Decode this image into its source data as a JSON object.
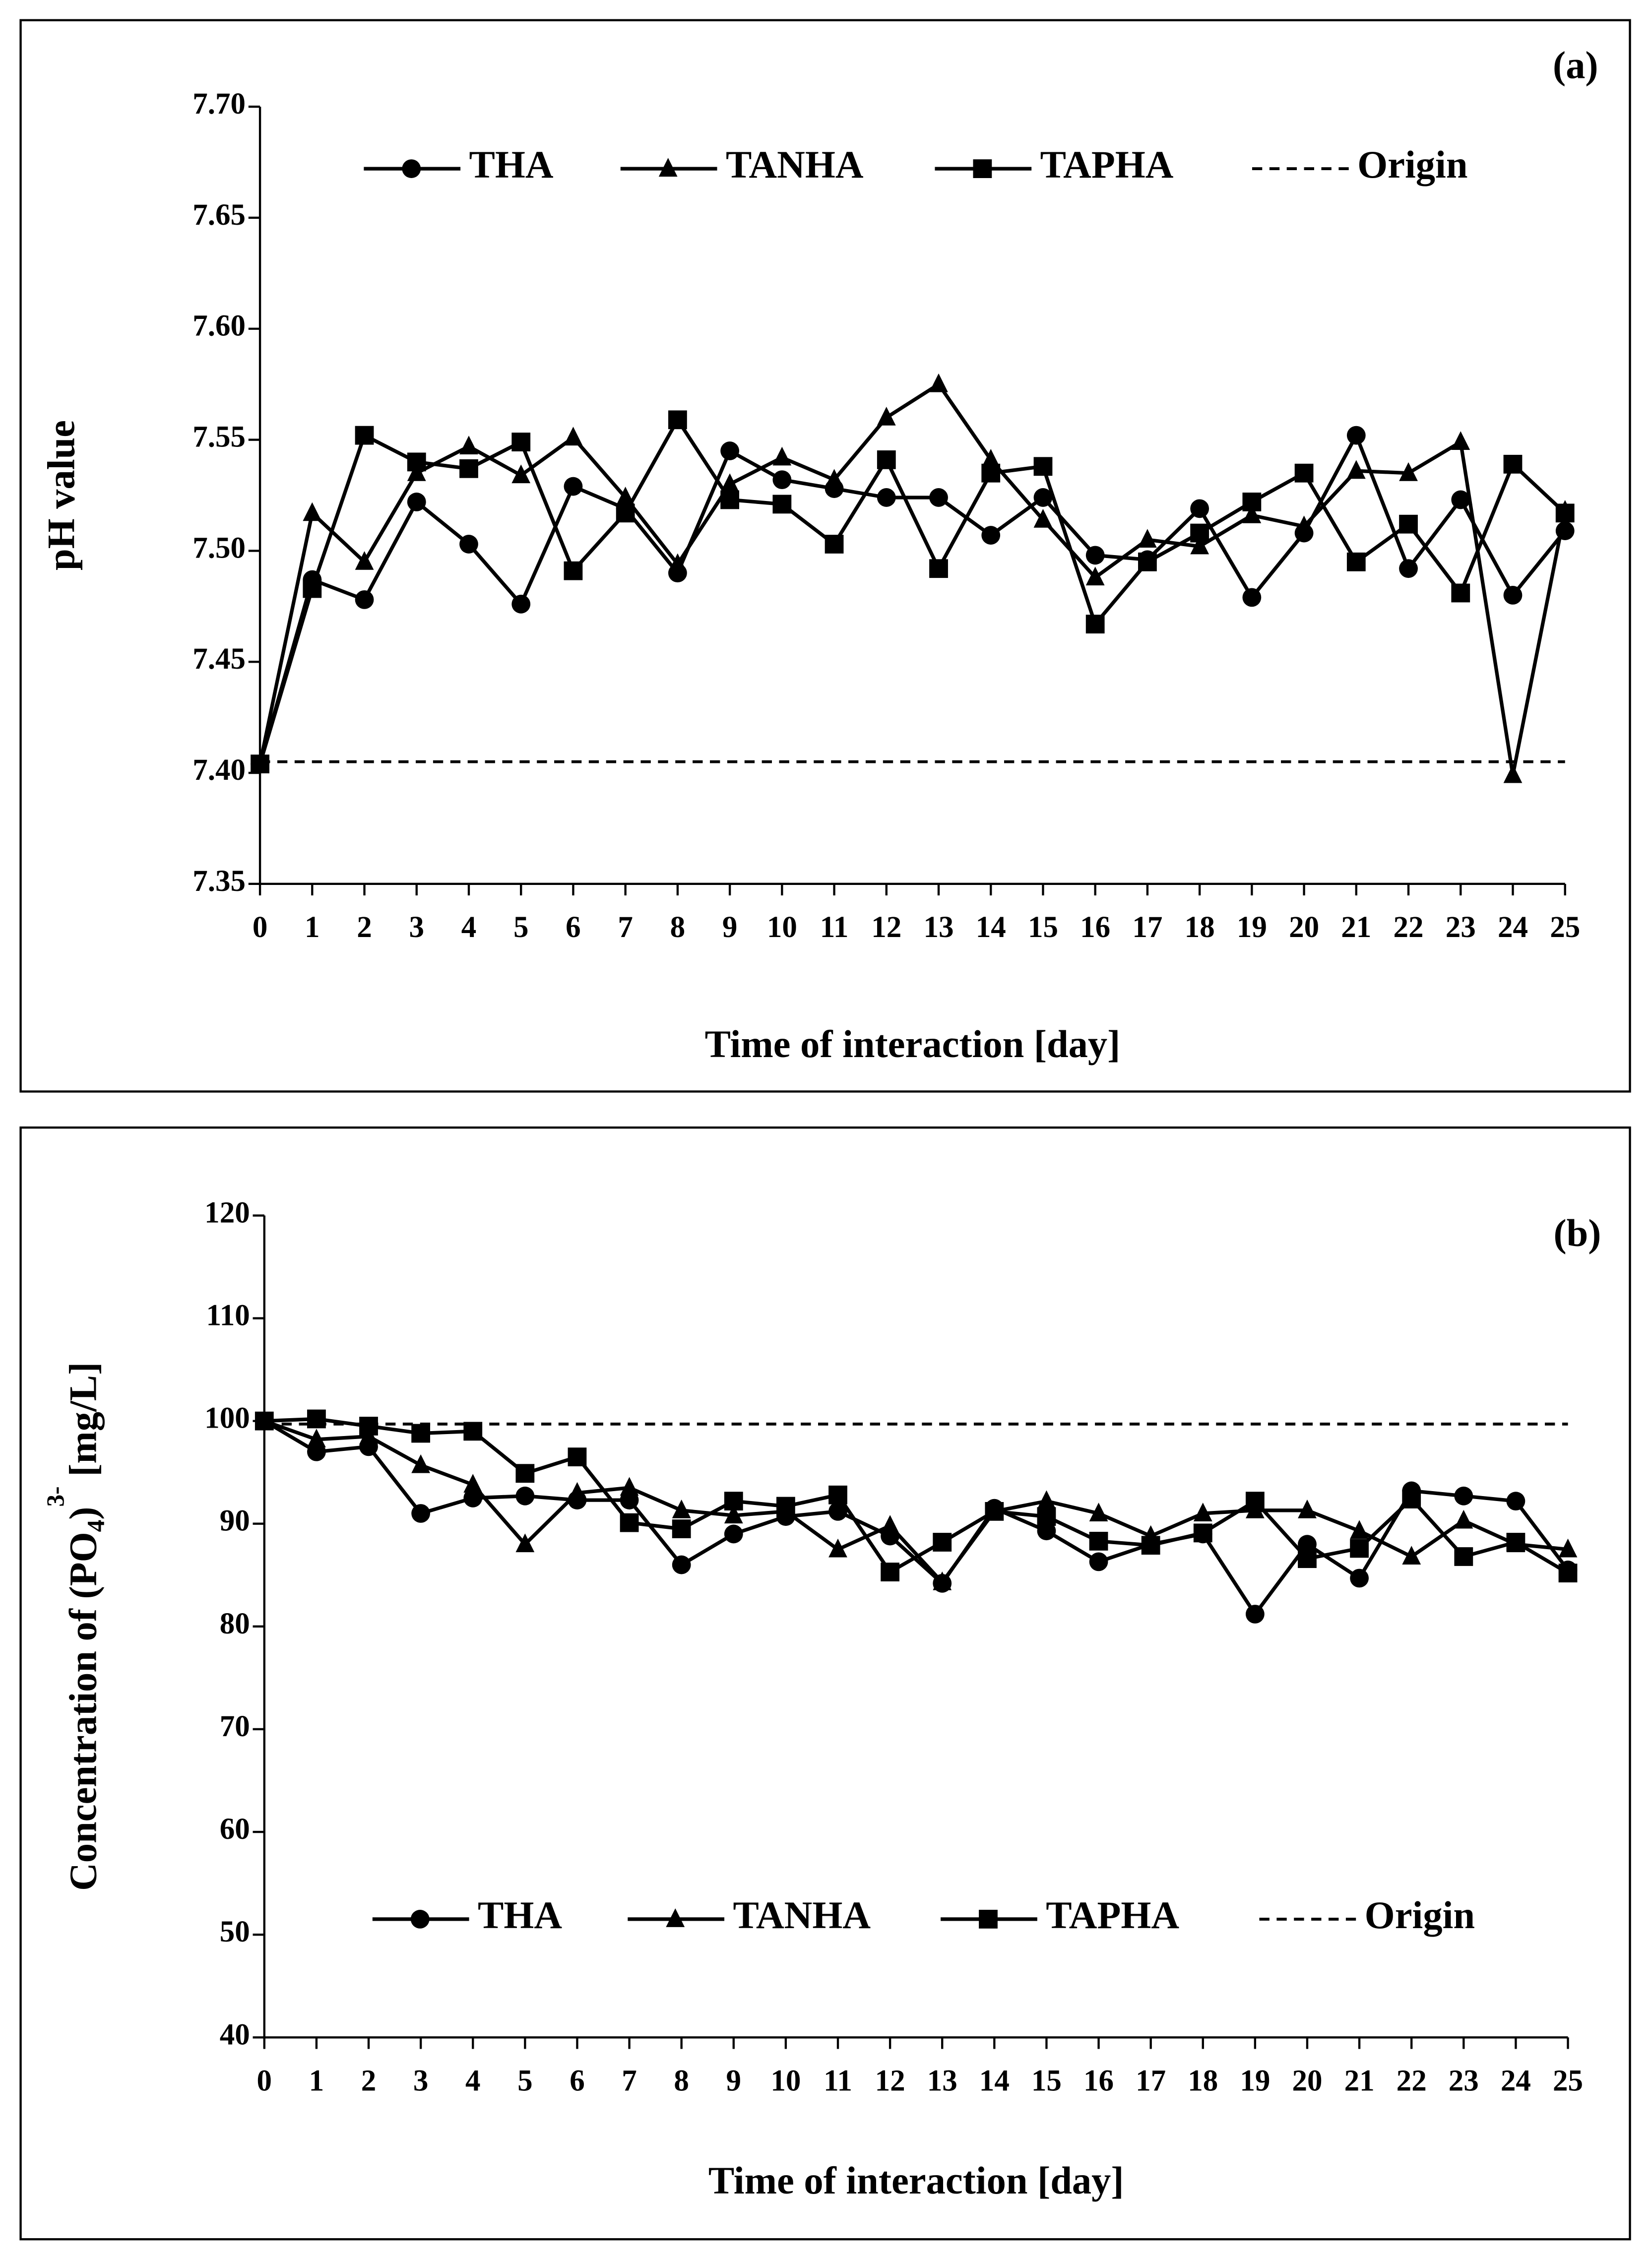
{
  "chart_data": [
    {
      "type": "line",
      "panel_label": "(a)",
      "xlabel": "Time of interaction [day]",
      "ylabel": [
        "pH value"
      ],
      "x": [
        0,
        1,
        2,
        3,
        4,
        5,
        6,
        7,
        8,
        9,
        10,
        11,
        12,
        13,
        14,
        15,
        16,
        17,
        18,
        19,
        20,
        21,
        22,
        23,
        24,
        25
      ],
      "xlim": [
        0,
        25
      ],
      "xticks": [
        0,
        1,
        2,
        3,
        4,
        5,
        6,
        7,
        8,
        9,
        10,
        11,
        12,
        13,
        14,
        15,
        16,
        17,
        18,
        19,
        20,
        21,
        22,
        23,
        24,
        25
      ],
      "ylim": [
        7.35,
        7.7
      ],
      "yticks": [
        7.35,
        {
          "value": 7.4,
          "label": "7.40"
        },
        7.45,
        {
          "value": 7.5,
          "label": "7.50"
        },
        7.55,
        {
          "value": 7.6,
          "label": "7.60"
        },
        7.65,
        {
          "value": 7.7,
          "label": "7.70"
        }
      ],
      "legend": "upper center",
      "series": [
        {
          "name": "THA",
          "color": "#000000",
          "marker": "circle",
          "values": [
            7.404,
            7.487,
            7.478,
            7.522,
            7.503,
            7.476,
            7.529,
            7.519,
            7.49,
            7.545,
            7.532,
            7.528,
            7.524,
            7.524,
            7.507,
            7.524,
            7.498,
            7.496,
            7.519,
            7.479,
            7.508,
            7.552,
            7.492,
            7.523,
            7.48,
            7.509
          ]
        },
        {
          "name": "TANHA",
          "color": "#000000",
          "marker": "triangle",
          "values": [
            7.404,
            7.517,
            7.495,
            7.535,
            7.547,
            7.534,
            7.551,
            7.524,
            7.494,
            7.53,
            7.542,
            7.532,
            7.56,
            7.575,
            7.541,
            7.514,
            7.488,
            7.505,
            7.502,
            7.516,
            7.511,
            7.536,
            7.535,
            7.549,
            7.399,
            7.518
          ]
        },
        {
          "name": "TAPHA",
          "color": "#000000",
          "marker": "square",
          "values": [
            7.404,
            7.483,
            7.552,
            7.54,
            7.537,
            7.549,
            7.491,
            7.517,
            7.559,
            7.523,
            7.521,
            7.503,
            7.541,
            7.492,
            7.535,
            7.538,
            7.467,
            7.495,
            7.508,
            7.522,
            7.535,
            7.495,
            7.512,
            7.481,
            7.539,
            7.517
          ]
        },
        {
          "name": "Origin",
          "color": "#000000",
          "dashed": true,
          "values": [
            7.405,
            7.405,
            7.405,
            7.405,
            7.405,
            7.405,
            7.405,
            7.405,
            7.405,
            7.405,
            7.405,
            7.405,
            7.405,
            7.405,
            7.405,
            7.405,
            7.405,
            7.405,
            7.405,
            7.405,
            7.405,
            7.405,
            7.405,
            7.405,
            7.405,
            7.405
          ]
        }
      ]
    },
    {
      "type": "line",
      "panel_label": "(b)",
      "xlabel": "Time of interaction [day]",
      "ylabel": [
        "Concentration of (PO",
        "4",
        ")",
        "3-",
        " [mg/L]"
      ],
      "x": [
        0,
        1,
        2,
        3,
        4,
        5,
        6,
        7,
        8,
        9,
        10,
        11,
        12,
        13,
        14,
        15,
        16,
        17,
        18,
        19,
        20,
        21,
        22,
        23,
        24,
        25
      ],
      "xlim": [
        0,
        25
      ],
      "xticks": [
        0,
        1,
        2,
        3,
        4,
        5,
        6,
        7,
        8,
        9,
        10,
        11,
        12,
        13,
        14,
        15,
        16,
        17,
        18,
        19,
        20,
        21,
        22,
        23,
        24,
        25
      ],
      "ylim": [
        40,
        120
      ],
      "yticks": [
        40,
        50,
        60,
        70,
        80,
        90,
        100,
        110,
        120
      ],
      "legend": "lower center",
      "series": [
        {
          "name": "THA",
          "color": "#000000",
          "marker": "circle",
          "values": [
            100,
            97,
            97.5,
            91,
            92.5,
            92.7,
            92.3,
            92.3,
            86,
            89,
            90.7,
            91.2,
            88.8,
            84.2,
            91.5,
            89.3,
            86.3,
            88,
            89,
            81.2,
            88,
            84.7,
            93.2,
            92.7,
            92.2,
            85.5
          ]
        },
        {
          "name": "TANHA",
          "color": "#000000",
          "marker": "triangle",
          "values": [
            100,
            98.2,
            98.5,
            95.7,
            93.8,
            88,
            93,
            93.5,
            91.3,
            90.8,
            91.2,
            87.5,
            89.8,
            84.3,
            91.2,
            92.2,
            91,
            88.8,
            91,
            91.3,
            91.3,
            89.3,
            86.8,
            90.3,
            88,
            87.5
          ]
        },
        {
          "name": "TAPHA",
          "color": "#000000",
          "marker": "square",
          "values": [
            100,
            100.2,
            99.5,
            98.8,
            99,
            94.9,
            96.5,
            90.1,
            89.5,
            92.2,
            91.7,
            92.8,
            85.3,
            88.2,
            91.2,
            90.7,
            88.3,
            87.9,
            89.1,
            92.2,
            86.6,
            87.6,
            92.4,
            86.8,
            88.2,
            85.2
          ]
        },
        {
          "name": "Origin",
          "color": "#000000",
          "dashed": true,
          "values": [
            99.7,
            99.7,
            99.7,
            99.7,
            99.7,
            99.7,
            99.7,
            99.7,
            99.7,
            99.7,
            99.7,
            99.7,
            99.7,
            99.7,
            99.7,
            99.7,
            99.7,
            99.7,
            99.7,
            99.7,
            99.7,
            99.7,
            99.7,
            99.7,
            99.7,
            99.7
          ]
        }
      ]
    }
  ]
}
